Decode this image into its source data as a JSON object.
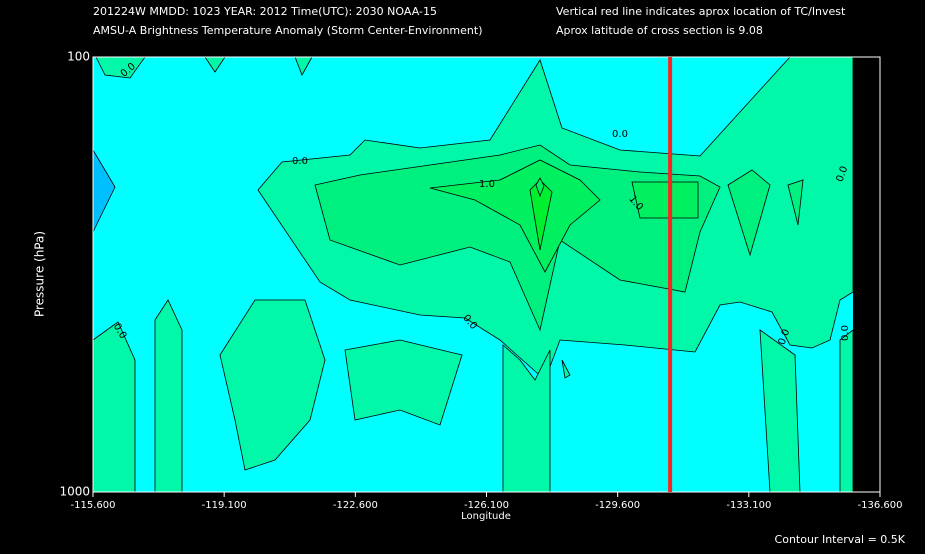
{
  "header": {
    "line1": "201224W  MMDD: 1023 YEAR: 2012 Time(UTC): 2030 NOAA-15",
    "line2": "AMSU-A Brightness Temperature Anomaly (Storm Center-Environment)",
    "note1": "Vertical red line indicates aprox location of TC/Invest",
    "note2": "Aprox latitude of cross section is 9.08"
  },
  "chart_data": {
    "type": "contour",
    "x_label": "Longitude",
    "y_label": "Pressure (hPa)",
    "xlim": [
      -115.6,
      -136.6
    ],
    "ylim": [
      1000,
      100
    ],
    "log_y": true,
    "xticks": [
      {
        "value": -115.6,
        "label": "-115.600"
      },
      {
        "value": -119.1,
        "label": "-119.100"
      },
      {
        "value": -122.6,
        "label": "-122.600"
      },
      {
        "value": -126.1,
        "label": "-126.100"
      },
      {
        "value": -129.6,
        "label": "-129.600"
      },
      {
        "value": -133.1,
        "label": "-133.100"
      },
      {
        "value": -136.6,
        "label": "-136.600"
      }
    ],
    "yticks": [
      100,
      1000
    ],
    "tc_longitude": -131.0,
    "tc_line_color": "#ff2020",
    "contour_labels": [
      "0.0",
      "0.0",
      "0.0",
      "1.0",
      "1.0",
      "0.0",
      "0.0",
      "0.0",
      "0.0",
      "0.0"
    ],
    "contour_interval": "Contour Interval = 0.5K"
  }
}
